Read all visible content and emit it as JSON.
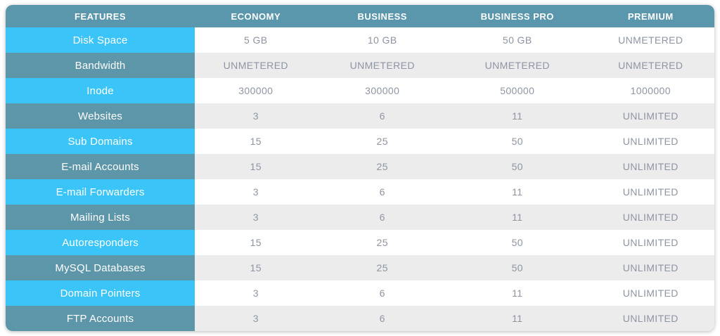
{
  "chart_data": {
    "type": "table",
    "columns": [
      "FEATURES",
      "ECONOMY",
      "BUSINESS",
      "BUSINESS PRO",
      "PREMIUM"
    ],
    "rows": [
      {
        "feature": "Disk Space",
        "values": [
          "5 GB",
          "10 GB",
          "50 GB",
          "UNMETERED"
        ]
      },
      {
        "feature": "Bandwidth",
        "values": [
          "UNMETERED",
          "UNMETERED",
          "UNMETERED",
          "UNMETERED"
        ]
      },
      {
        "feature": "Inode",
        "values": [
          "300000",
          "300000",
          "500000",
          "1000000"
        ]
      },
      {
        "feature": "Websites",
        "values": [
          "3",
          "6",
          "11",
          "UNLIMITED"
        ]
      },
      {
        "feature": "Sub Domains",
        "values": [
          "15",
          "25",
          "50",
          "UNLIMITED"
        ]
      },
      {
        "feature": "E-mail Accounts",
        "values": [
          "15",
          "25",
          "50",
          "UNLIMITED"
        ]
      },
      {
        "feature": "E-mail Forwarders",
        "values": [
          "3",
          "6",
          "11",
          "UNLIMITED"
        ]
      },
      {
        "feature": "Mailing Lists",
        "values": [
          "3",
          "6",
          "11",
          "UNLIMITED"
        ]
      },
      {
        "feature": "Autoresponders",
        "values": [
          "15",
          "25",
          "50",
          "UNLIMITED"
        ]
      },
      {
        "feature": "MySQL Databases",
        "values": [
          "15",
          "25",
          "50",
          "UNLIMITED"
        ]
      },
      {
        "feature": "Domain Pointers",
        "values": [
          "3",
          "6",
          "11",
          "UNLIMITED"
        ]
      },
      {
        "feature": "FTP Accounts",
        "values": [
          "3",
          "6",
          "11",
          "UNLIMITED"
        ]
      }
    ],
    "layout_hints": {
      "header_row": true,
      "feature_column_alternating": true,
      "value_rows_alternating": true,
      "grid": false
    }
  },
  "colors": {
    "header_bg": "#5a96ac",
    "feature_cell_blue": "#3bc4f7",
    "feature_cell_teal": "#5d95a9",
    "row_light": "#ffffff",
    "row_dark": "#ececec",
    "value_text": "#8d95a3",
    "header_text": "#ffffff"
  }
}
